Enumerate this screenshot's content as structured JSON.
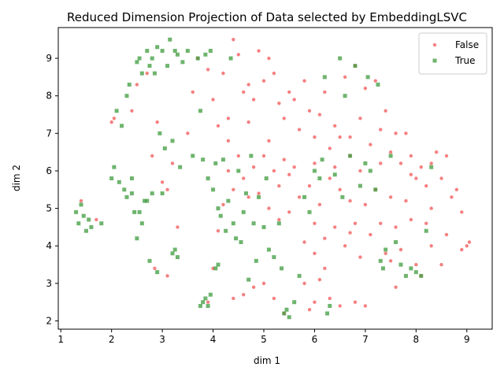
{
  "chart_data": {
    "type": "scatter",
    "title": "Reduced Dimension Projection of Data selected by EmbeddingLSVC",
    "xlabel": "dim 1",
    "ylabel": "dim 2",
    "xlim": [
      0.95,
      9.5
    ],
    "ylim": [
      1.78,
      9.82
    ],
    "xticks": [
      1,
      2,
      3,
      4,
      5,
      6,
      7,
      8,
      9
    ],
    "yticks": [
      2,
      3,
      4,
      5,
      6,
      7,
      8,
      9
    ],
    "grid": false,
    "legend_position": "top-right",
    "series": [
      {
        "name": "False",
        "color": "#f25757",
        "marker": "circle",
        "points": [
          [
            1.4,
            5.2
          ],
          [
            1.7,
            4.7
          ],
          [
            2.0,
            7.3
          ],
          [
            2.05,
            7.4
          ],
          [
            2.4,
            7.6
          ],
          [
            2.5,
            8.3
          ],
          [
            2.7,
            8.6
          ],
          [
            2.8,
            6.4
          ],
          [
            2.9,
            7.3
          ],
          [
            3.0,
            5.7
          ],
          [
            3.1,
            5.5
          ],
          [
            3.2,
            6.2
          ],
          [
            3.3,
            4.5
          ],
          [
            3.1,
            3.2
          ],
          [
            2.85,
            3.4
          ],
          [
            3.5,
            7.0
          ],
          [
            3.6,
            8.1
          ],
          [
            3.7,
            9.0
          ],
          [
            3.9,
            8.7
          ],
          [
            4.0,
            7.9
          ],
          [
            4.1,
            7.2
          ],
          [
            4.2,
            8.6
          ],
          [
            4.3,
            7.4
          ],
          [
            4.4,
            9.5
          ],
          [
            4.5,
            9.1
          ],
          [
            4.6,
            8.1
          ],
          [
            4.7,
            8.3
          ],
          [
            4.8,
            7.9
          ],
          [
            4.9,
            9.2
          ],
          [
            5.0,
            8.4
          ],
          [
            5.1,
            9.0
          ],
          [
            5.2,
            8.6
          ],
          [
            5.3,
            7.8
          ],
          [
            5.4,
            7.4
          ],
          [
            5.5,
            8.1
          ],
          [
            5.6,
            7.9
          ],
          [
            5.7,
            7.1
          ],
          [
            5.8,
            8.4
          ],
          [
            5.9,
            7.6
          ],
          [
            6.0,
            6.9
          ],
          [
            6.1,
            7.5
          ],
          [
            6.2,
            8.1
          ],
          [
            6.3,
            6.6
          ],
          [
            6.4,
            7.2
          ],
          [
            6.5,
            6.9
          ],
          [
            6.6,
            8.5
          ],
          [
            6.7,
            6.9
          ],
          [
            6.8,
            8.8
          ],
          [
            6.9,
            7.4
          ],
          [
            7.0,
            8.2
          ],
          [
            7.1,
            6.7
          ],
          [
            7.2,
            8.4
          ],
          [
            7.3,
            7.1
          ],
          [
            7.4,
            7.6
          ],
          [
            7.5,
            6.5
          ],
          [
            7.6,
            7.0
          ],
          [
            7.7,
            6.2
          ],
          [
            7.8,
            7.0
          ],
          [
            7.9,
            6.4
          ],
          [
            8.0,
            5.8
          ],
          [
            8.1,
            6.1
          ],
          [
            8.2,
            5.6
          ],
          [
            8.3,
            6.2
          ],
          [
            8.4,
            6.5
          ],
          [
            8.5,
            5.8
          ],
          [
            8.6,
            6.4
          ],
          [
            8.7,
            5.3
          ],
          [
            8.8,
            5.5
          ],
          [
            8.9,
            4.9
          ],
          [
            9.0,
            4.0
          ],
          [
            9.05,
            4.1
          ],
          [
            8.6,
            4.3
          ],
          [
            8.5,
            3.5
          ],
          [
            8.3,
            4.0
          ],
          [
            8.2,
            4.6
          ],
          [
            8.0,
            3.5
          ],
          [
            7.9,
            4.7
          ],
          [
            7.8,
            5.2
          ],
          [
            7.7,
            3.9
          ],
          [
            7.6,
            4.5
          ],
          [
            7.5,
            5.3
          ],
          [
            7.4,
            3.8
          ],
          [
            7.3,
            4.6
          ],
          [
            7.2,
            5.5
          ],
          [
            7.1,
            4.3
          ],
          [
            7.0,
            5.1
          ],
          [
            6.9,
            3.7
          ],
          [
            6.8,
            4.6
          ],
          [
            6.7,
            5.2
          ],
          [
            6.6,
            4.0
          ],
          [
            6.5,
            5.5
          ],
          [
            6.4,
            4.5
          ],
          [
            6.3,
            5.8
          ],
          [
            6.2,
            4.2
          ],
          [
            6.1,
            5.1
          ],
          [
            6.0,
            4.6
          ],
          [
            5.9,
            5.6
          ],
          [
            5.8,
            4.1
          ],
          [
            5.7,
            5.3
          ],
          [
            5.6,
            6.1
          ],
          [
            5.5,
            4.9
          ],
          [
            5.4,
            6.3
          ],
          [
            5.3,
            5.6
          ],
          [
            5.2,
            6.0
          ],
          [
            5.1,
            5.0
          ],
          [
            5.0,
            6.4
          ],
          [
            4.9,
            5.4
          ],
          [
            4.8,
            6.1
          ],
          [
            4.7,
            5.3
          ],
          [
            4.6,
            5.8
          ],
          [
            4.5,
            6.4
          ],
          [
            4.4,
            5.5
          ],
          [
            4.3,
            6.0
          ],
          [
            4.2,
            5.1
          ],
          [
            4.1,
            4.4
          ],
          [
            4.0,
            3.4
          ],
          [
            3.9,
            2.5
          ],
          [
            4.4,
            2.6
          ],
          [
            4.6,
            2.7
          ],
          [
            4.8,
            2.9
          ],
          [
            5.0,
            3.0
          ],
          [
            5.2,
            2.6
          ],
          [
            5.4,
            2.2
          ],
          [
            5.9,
            2.3
          ],
          [
            6.0,
            2.5
          ],
          [
            6.1,
            3.1
          ],
          [
            6.3,
            2.6
          ],
          [
            6.5,
            2.4
          ],
          [
            7.0,
            2.4
          ],
          [
            6.8,
            2.5
          ],
          [
            7.6,
            2.9
          ],
          [
            7.5,
            3.6
          ],
          [
            8.1,
            3.2
          ],
          [
            8.9,
            3.9
          ],
          [
            6.7,
            4.35
          ],
          [
            5.3,
            4.7
          ],
          [
            6.0,
            3.8
          ],
          [
            6.2,
            3.4
          ],
          [
            5.8,
            3.0
          ],
          [
            6.9,
            6.0
          ],
          [
            7.3,
            6.2
          ],
          [
            6.0,
            6.2
          ],
          [
            5.1,
            6.8
          ],
          [
            4.7,
            7.3
          ],
          [
            4.3,
            6.8
          ],
          [
            6.7,
            6.4
          ],
          [
            7.9,
            5.9
          ],
          [
            8.3,
            5.0
          ],
          [
            5.5,
            5.9
          ],
          [
            6.4,
            6.1
          ]
        ]
      },
      {
        "name": "True",
        "color": "#3d9b3d",
        "marker": "square",
        "points": [
          [
            1.3,
            4.9
          ],
          [
            1.35,
            4.6
          ],
          [
            1.4,
            5.1
          ],
          [
            1.45,
            4.8
          ],
          [
            1.5,
            4.4
          ],
          [
            1.55,
            4.7
          ],
          [
            1.6,
            4.5
          ],
          [
            1.8,
            4.6
          ],
          [
            2.0,
            5.8
          ],
          [
            2.05,
            6.1
          ],
          [
            2.1,
            7.6
          ],
          [
            2.15,
            5.7
          ],
          [
            2.2,
            7.2
          ],
          [
            2.3,
            8.0
          ],
          [
            2.35,
            8.3
          ],
          [
            2.4,
            5.8
          ],
          [
            2.45,
            4.9
          ],
          [
            2.5,
            8.9
          ],
          [
            2.55,
            9.0
          ],
          [
            2.6,
            8.6
          ],
          [
            2.65,
            5.2
          ],
          [
            2.7,
            9.2
          ],
          [
            2.75,
            8.8
          ],
          [
            2.8,
            9.0
          ],
          [
            2.85,
            8.6
          ],
          [
            2.9,
            9.3
          ],
          [
            2.95,
            7.0
          ],
          [
            3.0,
            9.2
          ],
          [
            3.05,
            6.6
          ],
          [
            3.1,
            8.8
          ],
          [
            3.15,
            9.5
          ],
          [
            3.2,
            6.8
          ],
          [
            3.25,
            9.2
          ],
          [
            3.3,
            9.1
          ],
          [
            3.35,
            6.1
          ],
          [
            3.4,
            8.9
          ],
          [
            3.5,
            9.2
          ],
          [
            3.6,
            6.4
          ],
          [
            3.7,
            9.0
          ],
          [
            3.75,
            7.6
          ],
          [
            3.8,
            6.3
          ],
          [
            3.85,
            9.1
          ],
          [
            3.9,
            5.8
          ],
          [
            3.95,
            9.2
          ],
          [
            4.0,
            5.5
          ],
          [
            4.05,
            6.2
          ],
          [
            4.1,
            5.0
          ],
          [
            4.15,
            4.8
          ],
          [
            4.2,
            6.3
          ],
          [
            4.25,
            4.4
          ],
          [
            4.3,
            5.2
          ],
          [
            4.35,
            9.0
          ],
          [
            4.4,
            4.6
          ],
          [
            4.45,
            4.2
          ],
          [
            4.5,
            6.0
          ],
          [
            4.55,
            4.1
          ],
          [
            4.6,
            4.9
          ],
          [
            4.65,
            5.4
          ],
          [
            4.7,
            3.1
          ],
          [
            4.75,
            6.4
          ],
          [
            4.8,
            4.6
          ],
          [
            4.85,
            3.6
          ],
          [
            4.9,
            5.3
          ],
          [
            5.0,
            4.5
          ],
          [
            5.05,
            5.8
          ],
          [
            5.1,
            3.9
          ],
          [
            5.2,
            3.7
          ],
          [
            5.3,
            4.6
          ],
          [
            5.35,
            3.4
          ],
          [
            5.4,
            2.2
          ],
          [
            5.45,
            2.3
          ],
          [
            5.5,
            2.1
          ],
          [
            5.6,
            2.5
          ],
          [
            5.7,
            3.2
          ],
          [
            5.8,
            5.3
          ],
          [
            5.9,
            4.9
          ],
          [
            6.0,
            6.0
          ],
          [
            6.1,
            5.8
          ],
          [
            6.15,
            6.3
          ],
          [
            6.2,
            8.5
          ],
          [
            6.25,
            2.2
          ],
          [
            6.3,
            2.4
          ],
          [
            6.4,
            5.9
          ],
          [
            6.5,
            9.0
          ],
          [
            6.55,
            5.3
          ],
          [
            6.6,
            8.0
          ],
          [
            6.7,
            6.4
          ],
          [
            6.8,
            8.8
          ],
          [
            6.9,
            5.6
          ],
          [
            7.0,
            6.2
          ],
          [
            7.05,
            8.5
          ],
          [
            7.1,
            6.0
          ],
          [
            7.2,
            5.5
          ],
          [
            7.25,
            8.3
          ],
          [
            7.3,
            3.6
          ],
          [
            7.35,
            3.4
          ],
          [
            7.4,
            3.9
          ],
          [
            7.5,
            6.4
          ],
          [
            7.6,
            4.1
          ],
          [
            7.7,
            3.5
          ],
          [
            7.8,
            3.2
          ],
          [
            7.9,
            3.4
          ],
          [
            8.0,
            3.3
          ],
          [
            8.1,
            3.2
          ],
          [
            8.2,
            4.4
          ],
          [
            8.3,
            6.1
          ],
          [
            3.75,
            2.4
          ],
          [
            3.8,
            2.5
          ],
          [
            3.85,
            2.6
          ],
          [
            3.9,
            2.4
          ],
          [
            3.95,
            2.7
          ],
          [
            4.05,
            3.4
          ],
          [
            4.1,
            3.5
          ],
          [
            3.2,
            3.8
          ],
          [
            3.25,
            3.9
          ],
          [
            3.3,
            3.7
          ],
          [
            2.9,
            3.3
          ],
          [
            2.75,
            3.6
          ],
          [
            2.6,
            4.6
          ],
          [
            2.55,
            4.9
          ],
          [
            2.5,
            4.2
          ],
          [
            2.7,
            5.2
          ],
          [
            2.3,
            5.3
          ],
          [
            2.4,
            5.4
          ],
          [
            2.25,
            5.5
          ],
          [
            2.8,
            5.4
          ],
          [
            3.0,
            5.4
          ]
        ]
      }
    ]
  }
}
